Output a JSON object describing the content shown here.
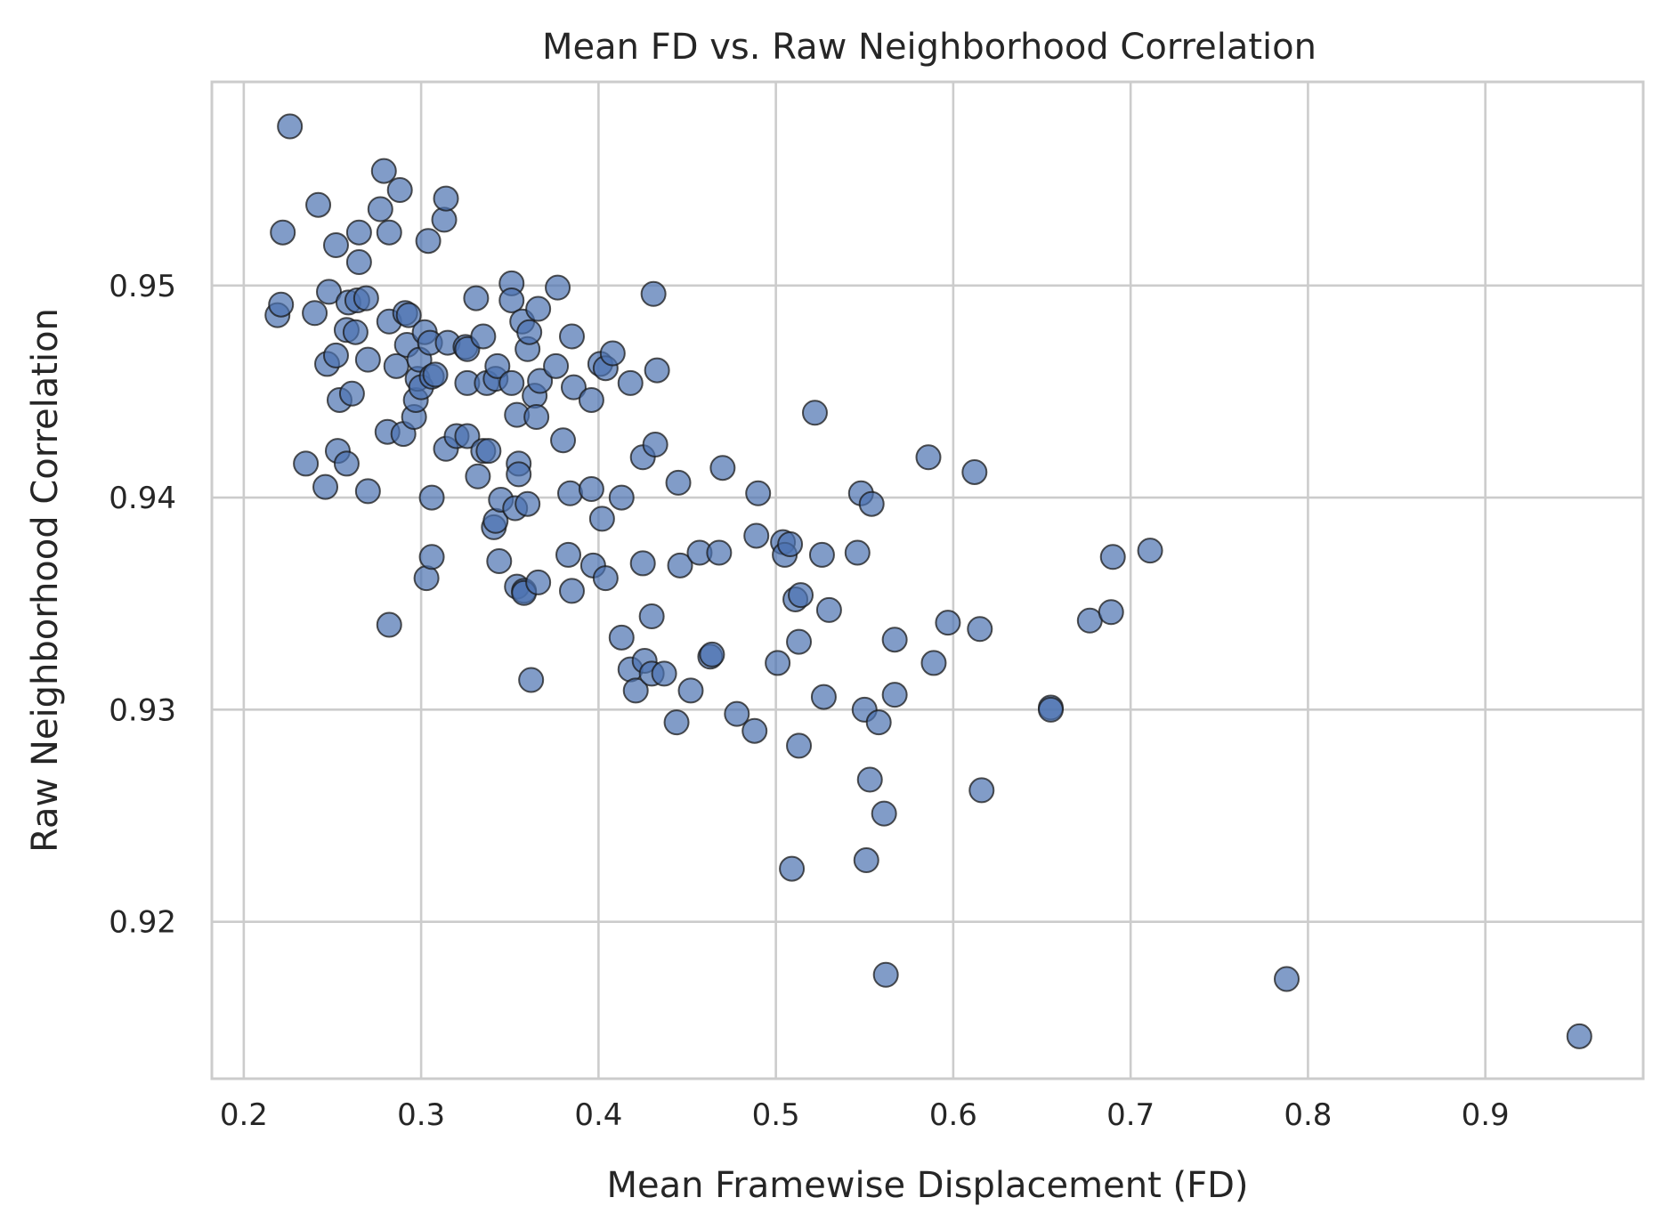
{
  "chart_data": {
    "type": "scatter",
    "title": "Mean FD vs. Raw Neighborhood Correlation",
    "xlabel": "Mean Framewise Displacement (FD)",
    "ylabel": "Raw Neighborhood Correlation",
    "xlim": [
      0.182,
      0.989
    ],
    "ylim": [
      0.9126,
      0.9596
    ],
    "xticks": [
      0.2,
      0.3,
      0.4,
      0.5,
      0.6,
      0.7,
      0.8,
      0.9
    ],
    "xtick_labels": [
      "0.2",
      "0.3",
      "0.4",
      "0.5",
      "0.6",
      "0.7",
      "0.8",
      "0.9"
    ],
    "yticks": [
      0.92,
      0.93,
      0.94,
      0.95
    ],
    "ytick_labels": [
      "0.92",
      "0.93",
      "0.94",
      "0.95"
    ],
    "grid": true,
    "marker_color": "#4c72b0",
    "marker_alpha": 0.7,
    "marker_edge_color": "#1a1a1a",
    "points": [
      [
        0.226,
        0.9575
      ],
      [
        0.222,
        0.9525
      ],
      [
        0.219,
        0.9486
      ],
      [
        0.221,
        0.9491
      ],
      [
        0.235,
        0.9416
      ],
      [
        0.24,
        0.9487
      ],
      [
        0.242,
        0.9538
      ],
      [
        0.246,
        0.9405
      ],
      [
        0.247,
        0.9463
      ],
      [
        0.248,
        0.9497
      ],
      [
        0.252,
        0.9519
      ],
      [
        0.252,
        0.9467
      ],
      [
        0.253,
        0.9422
      ],
      [
        0.254,
        0.9446
      ],
      [
        0.258,
        0.9416
      ],
      [
        0.258,
        0.9479
      ],
      [
        0.259,
        0.9492
      ],
      [
        0.261,
        0.9449
      ],
      [
        0.263,
        0.9478
      ],
      [
        0.264,
        0.9493
      ],
      [
        0.265,
        0.9525
      ],
      [
        0.265,
        0.9511
      ],
      [
        0.269,
        0.9494
      ],
      [
        0.27,
        0.9465
      ],
      [
        0.27,
        0.9403
      ],
      [
        0.277,
        0.9536
      ],
      [
        0.279,
        0.9554
      ],
      [
        0.281,
        0.9431
      ],
      [
        0.282,
        0.9525
      ],
      [
        0.282,
        0.9483
      ],
      [
        0.282,
        0.934
      ],
      [
        0.286,
        0.9462
      ],
      [
        0.288,
        0.9545
      ],
      [
        0.29,
        0.943
      ],
      [
        0.291,
        0.9487
      ],
      [
        0.292,
        0.9472
      ],
      [
        0.293,
        0.9486
      ],
      [
        0.296,
        0.9438
      ],
      [
        0.297,
        0.9446
      ],
      [
        0.298,
        0.9456
      ],
      [
        0.299,
        0.9465
      ],
      [
        0.3,
        0.9452
      ],
      [
        0.302,
        0.9478
      ],
      [
        0.303,
        0.9362
      ],
      [
        0.304,
        0.9521
      ],
      [
        0.305,
        0.9473
      ],
      [
        0.306,
        0.9457
      ],
      [
        0.306,
        0.94
      ],
      [
        0.306,
        0.9372
      ],
      [
        0.308,
        0.9458
      ],
      [
        0.313,
        0.9531
      ],
      [
        0.314,
        0.9541
      ],
      [
        0.314,
        0.9423
      ],
      [
        0.315,
        0.9473
      ],
      [
        0.32,
        0.9429
      ],
      [
        0.325,
        0.9471
      ],
      [
        0.326,
        0.947
      ],
      [
        0.326,
        0.9429
      ],
      [
        0.326,
        0.9454
      ],
      [
        0.331,
        0.9494
      ],
      [
        0.332,
        0.941
      ],
      [
        0.335,
        0.9476
      ],
      [
        0.335,
        0.9422
      ],
      [
        0.337,
        0.9454
      ],
      [
        0.338,
        0.9422
      ],
      [
        0.341,
        0.9386
      ],
      [
        0.342,
        0.9389
      ],
      [
        0.342,
        0.9456
      ],
      [
        0.343,
        0.9462
      ],
      [
        0.344,
        0.937
      ],
      [
        0.345,
        0.9399
      ],
      [
        0.351,
        0.9501
      ],
      [
        0.351,
        0.9493
      ],
      [
        0.351,
        0.9454
      ],
      [
        0.353,
        0.9395
      ],
      [
        0.354,
        0.9439
      ],
      [
        0.354,
        0.9358
      ],
      [
        0.355,
        0.9416
      ],
      [
        0.355,
        0.9411
      ],
      [
        0.357,
        0.9483
      ],
      [
        0.358,
        0.9356
      ],
      [
        0.358,
        0.9355
      ],
      [
        0.36,
        0.9397
      ],
      [
        0.36,
        0.947
      ],
      [
        0.361,
        0.9478
      ],
      [
        0.362,
        0.9314
      ],
      [
        0.364,
        0.9448
      ],
      [
        0.365,
        0.9438
      ],
      [
        0.366,
        0.9489
      ],
      [
        0.366,
        0.936
      ],
      [
        0.367,
        0.9455
      ],
      [
        0.376,
        0.9462
      ],
      [
        0.377,
        0.9499
      ],
      [
        0.38,
        0.9427
      ],
      [
        0.383,
        0.9373
      ],
      [
        0.384,
        0.9402
      ],
      [
        0.385,
        0.9476
      ],
      [
        0.385,
        0.9356
      ],
      [
        0.386,
        0.9452
      ],
      [
        0.396,
        0.9446
      ],
      [
        0.396,
        0.9404
      ],
      [
        0.397,
        0.9368
      ],
      [
        0.401,
        0.9463
      ],
      [
        0.402,
        0.939
      ],
      [
        0.404,
        0.9362
      ],
      [
        0.404,
        0.9461
      ],
      [
        0.408,
        0.9468
      ],
      [
        0.413,
        0.94
      ],
      [
        0.413,
        0.9334
      ],
      [
        0.418,
        0.9454
      ],
      [
        0.418,
        0.9319
      ],
      [
        0.421,
        0.9309
      ],
      [
        0.425,
        0.9419
      ],
      [
        0.425,
        0.9369
      ],
      [
        0.426,
        0.9323
      ],
      [
        0.43,
        0.9344
      ],
      [
        0.43,
        0.9317
      ],
      [
        0.431,
        0.9496
      ],
      [
        0.432,
        0.9425
      ],
      [
        0.433,
        0.946
      ],
      [
        0.437,
        0.9317
      ],
      [
        0.444,
        0.9294
      ],
      [
        0.445,
        0.9407
      ],
      [
        0.446,
        0.9368
      ],
      [
        0.452,
        0.9309
      ],
      [
        0.457,
        0.9374
      ],
      [
        0.463,
        0.9325
      ],
      [
        0.464,
        0.9326
      ],
      [
        0.468,
        0.9374
      ],
      [
        0.47,
        0.9414
      ],
      [
        0.478,
        0.9298
      ],
      [
        0.488,
        0.929
      ],
      [
        0.489,
        0.9382
      ],
      [
        0.49,
        0.9402
      ],
      [
        0.501,
        0.9322
      ],
      [
        0.504,
        0.9379
      ],
      [
        0.505,
        0.9373
      ],
      [
        0.508,
        0.9378
      ],
      [
        0.509,
        0.9225
      ],
      [
        0.511,
        0.9352
      ],
      [
        0.513,
        0.9283
      ],
      [
        0.513,
        0.9332
      ],
      [
        0.514,
        0.9354
      ],
      [
        0.522,
        0.944
      ],
      [
        0.526,
        0.9373
      ],
      [
        0.527,
        0.9306
      ],
      [
        0.53,
        0.9347
      ],
      [
        0.546,
        0.9374
      ],
      [
        0.548,
        0.9402
      ],
      [
        0.55,
        0.93
      ],
      [
        0.551,
        0.9229
      ],
      [
        0.553,
        0.9267
      ],
      [
        0.554,
        0.9397
      ],
      [
        0.558,
        0.9294
      ],
      [
        0.561,
        0.9251
      ],
      [
        0.562,
        0.9175
      ],
      [
        0.567,
        0.9333
      ],
      [
        0.567,
        0.9307
      ],
      [
        0.586,
        0.9419
      ],
      [
        0.589,
        0.9322
      ],
      [
        0.597,
        0.9341
      ],
      [
        0.612,
        0.9412
      ],
      [
        0.615,
        0.9338
      ],
      [
        0.616,
        0.9262
      ],
      [
        0.655,
        0.9301
      ],
      [
        0.655,
        0.93
      ],
      [
        0.677,
        0.9342
      ],
      [
        0.689,
        0.9346
      ],
      [
        0.69,
        0.9372
      ],
      [
        0.711,
        0.9375
      ],
      [
        0.788,
        0.9173
      ],
      [
        0.953,
        0.9146
      ]
    ]
  }
}
